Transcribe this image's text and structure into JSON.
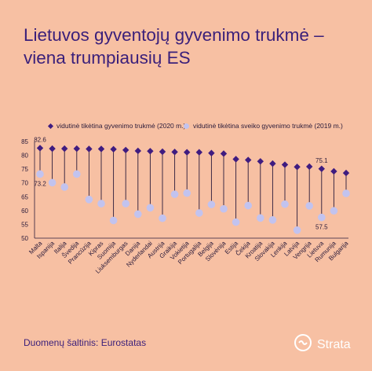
{
  "title": "Lietuvos gyventojų gyvenimo trukmė – viena trumpiausių ES",
  "source": "Duomenų šaltinis: Eurostatas",
  "brand": "Strata",
  "colors": {
    "background": "#f7c0a3",
    "series_2020": "#3f1c80",
    "series_2019": "#c2c3ef",
    "title": "#3a1f7a"
  },
  "icons": {
    "brand_logo": "strata-logo-icon"
  },
  "chart_data": {
    "type": "dumbbell",
    "categories": [
      "Malta",
      "Ispanija",
      "Italija",
      "Švedija",
      "Prancūzija",
      "Kipras",
      "Suomija",
      "Liuksemburgas",
      "Danija",
      "Nyderlandai",
      "Austrija",
      "Graikija",
      "Vokietija",
      "Portugalija",
      "Belgija",
      "Slovėnija",
      "Estija",
      "Čekija",
      "Kroatija",
      "Slovakija",
      "Lenkija",
      "Latvija",
      "Vengrija",
      "Lietuva",
      "Rumunija",
      "Bulgarija"
    ],
    "series": [
      {
        "name": "vidutinė tikėtina gyvenimo trukmė (2020 m.)",
        "marker": "diamond",
        "values": [
          82.6,
          82.4,
          82.4,
          82.4,
          82.3,
          82.3,
          82.2,
          81.9,
          81.6,
          81.5,
          81.3,
          81.2,
          81.1,
          81.1,
          80.8,
          80.6,
          78.6,
          78.3,
          77.8,
          77.0,
          76.6,
          75.8,
          75.9,
          75.1,
          74.2,
          73.6
        ]
      },
      {
        "name": "vidutinė tikėtina sveiko gyvenimo trukmė (2019 m.)",
        "marker": "circle",
        "values": [
          73.2,
          70.1,
          68.5,
          73.2,
          64.0,
          62.5,
          56.4,
          62.5,
          58.7,
          61.0,
          57.2,
          65.9,
          66.3,
          59.1,
          62.2,
          60.6,
          55.8,
          61.8,
          57.3,
          56.6,
          62.3,
          52.9,
          61.7,
          57.5,
          59.9,
          66.2
        ]
      }
    ],
    "annotations": [
      {
        "text": "82.6",
        "category": "Malta",
        "series": 0
      },
      {
        "text": "73.2",
        "category": "Malta",
        "series": 1
      },
      {
        "text": "75.1",
        "category": "Lietuva",
        "series": 0
      },
      {
        "text": "57.5",
        "category": "Lietuva",
        "series": 1
      }
    ],
    "yticks": [
      50,
      55,
      60,
      65,
      70,
      75,
      80,
      85
    ],
    "ylim": [
      50,
      85
    ],
    "grid": false,
    "legend_position": "top"
  }
}
